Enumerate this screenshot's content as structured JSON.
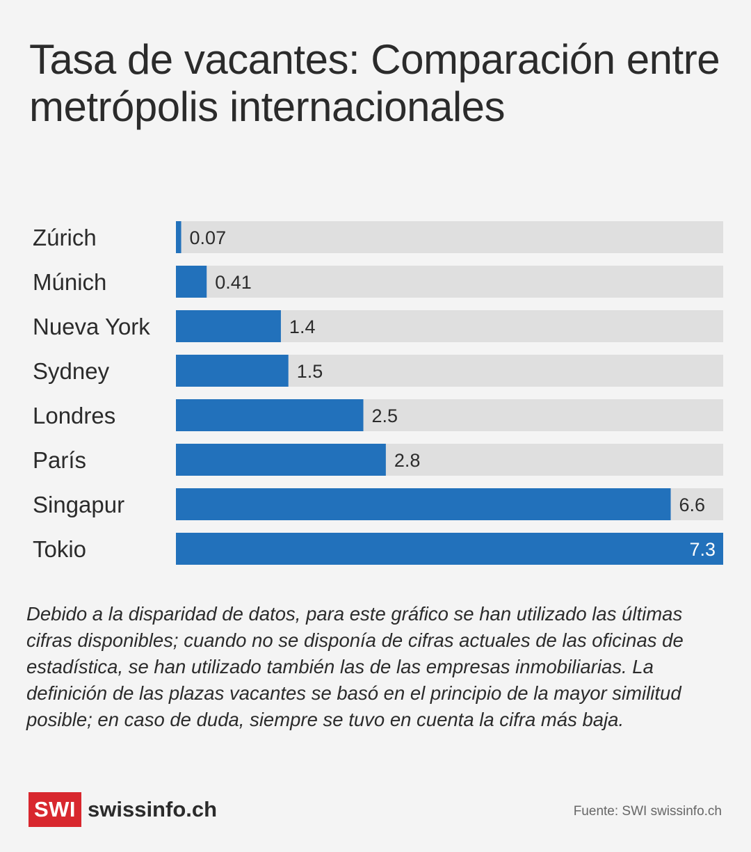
{
  "title": "Tasa de vacantes: Comparación entre metrópolis internacionales",
  "chart_data": {
    "type": "bar",
    "orientation": "horizontal",
    "categories": [
      "Zúrich",
      "Múnich",
      "Nueva York",
      "Sydney",
      "Londres",
      "París",
      "Singapur",
      "Tokio"
    ],
    "values": [
      0.07,
      0.41,
      1.4,
      1.5,
      2.5,
      2.8,
      6.6,
      7.3
    ],
    "value_labels": [
      "0.07",
      "0.41",
      "1.4",
      "1.5",
      "2.5",
      "2.8",
      "6.6",
      "7.3"
    ],
    "xlim": [
      0,
      7.3
    ],
    "grid": false,
    "legend": false,
    "colors": {
      "bar": "#2271bb",
      "track": "#dfdfdf",
      "label_outside": "#2b2b2b",
      "label_inside": "#ffffff"
    }
  },
  "note": "Debido a la disparidad de datos, para este gráfico se han utilizado las últimas cifras disponibles; cuando no se disponía de cifras actuales de las oficinas de estadística, se han utilizado también las de las empresas inmobiliarias. La definición de las plazas vacantes se basó en el principio de la mayor similitud posible; en caso de duda, siempre se tuvo en cuenta la cifra más baja.",
  "logo": {
    "box_text": "SWI",
    "text": "swissinfo.ch",
    "brand_color": "#d8272e"
  },
  "source": "Fuente: SWI swissinfo.ch"
}
